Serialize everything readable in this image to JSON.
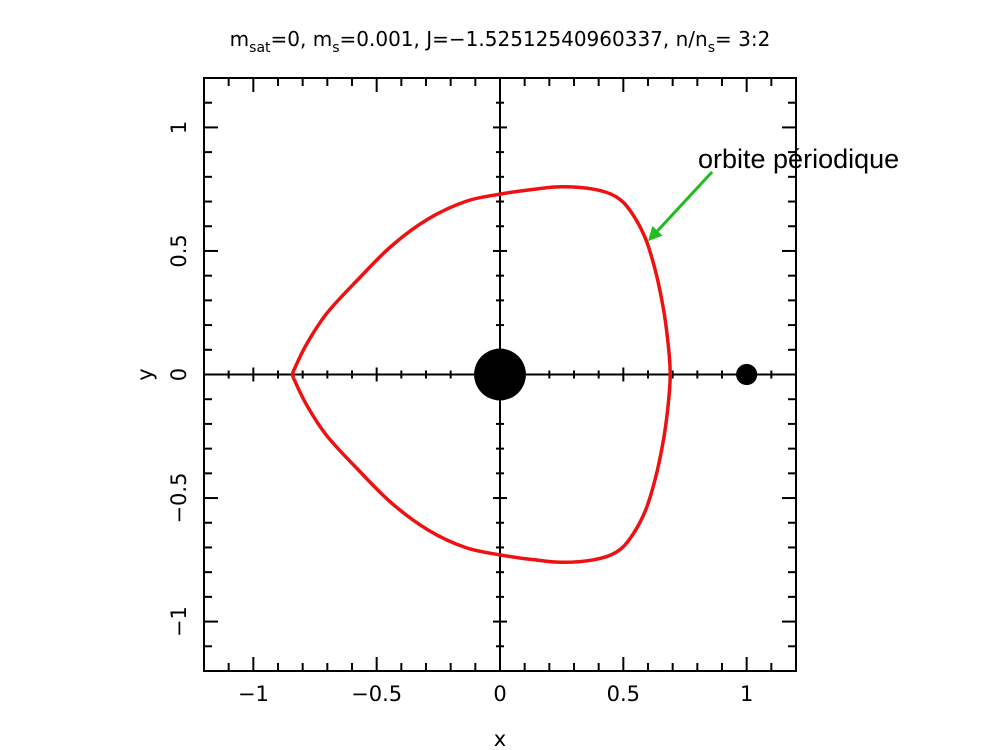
{
  "chart_data": {
    "type": "line",
    "title_parts": {
      "m": "m",
      "sat_sub": "sat",
      "eq0": "=0, ",
      "m2": "m",
      "s_sub": "s",
      "eq_ms": "=0.001, ",
      "J_text": "J=−1.52512540960337, ",
      "n": "n/n",
      "s_sub2": "s",
      "ratio": "= 3:2"
    },
    "xlabel": "x",
    "ylabel": "y",
    "xlim": [
      -1.2,
      1.2
    ],
    "ylim": [
      -1.2,
      1.2
    ],
    "x_ticks": [
      {
        "value": -1,
        "label": "−1"
      },
      {
        "value": -0.5,
        "label": "−0.5"
      },
      {
        "value": 0,
        "label": "0"
      },
      {
        "value": 0.5,
        "label": "0.5"
      },
      {
        "value": 1,
        "label": "1"
      }
    ],
    "y_ticks": [
      {
        "value": -1,
        "label": "−1"
      },
      {
        "value": -0.5,
        "label": "−0.5"
      },
      {
        "value": 0,
        "label": "0"
      },
      {
        "value": 0.5,
        "label": "0.5"
      },
      {
        "value": 1,
        "label": "1"
      }
    ],
    "series": [
      {
        "color": "#ee1111",
        "closed": true,
        "points": [
          [
            0.69,
            0.0
          ],
          [
            0.68,
            0.14
          ],
          [
            0.66,
            0.28
          ],
          [
            0.63,
            0.42
          ],
          [
            0.59,
            0.55
          ],
          [
            0.53,
            0.66
          ],
          [
            0.47,
            0.72
          ],
          [
            0.38,
            0.75
          ],
          [
            0.25,
            0.76
          ],
          [
            0.14,
            0.75
          ],
          [
            0.0,
            0.73
          ],
          [
            -0.14,
            0.7
          ],
          [
            -0.29,
            0.63
          ],
          [
            -0.44,
            0.52
          ],
          [
            -0.58,
            0.38
          ],
          [
            -0.7,
            0.25
          ],
          [
            -0.78,
            0.13
          ],
          [
            -0.83,
            0.03
          ],
          [
            -0.84,
            0.0
          ],
          [
            -0.83,
            -0.03
          ],
          [
            -0.78,
            -0.13
          ],
          [
            -0.7,
            -0.25
          ],
          [
            -0.58,
            -0.38
          ],
          [
            -0.44,
            -0.52
          ],
          [
            -0.29,
            -0.63
          ],
          [
            -0.14,
            -0.7
          ],
          [
            0.0,
            -0.73
          ],
          [
            0.14,
            -0.75
          ],
          [
            0.25,
            -0.76
          ],
          [
            0.38,
            -0.75
          ],
          [
            0.47,
            -0.72
          ],
          [
            0.53,
            -0.66
          ],
          [
            0.59,
            -0.55
          ],
          [
            0.63,
            -0.42
          ],
          [
            0.66,
            -0.28
          ],
          [
            0.68,
            -0.14
          ]
        ]
      }
    ],
    "bodies": [
      {
        "x": 0,
        "y": 0,
        "radius": 0.105,
        "color": "#000000"
      },
      {
        "x": 1,
        "y": 0,
        "radius": 0.043,
        "color": "#000000"
      }
    ],
    "annotation": {
      "text": "orbite périodique",
      "arrow_color": "#22bb22",
      "arrow_from": [
        0.86,
        0.82
      ],
      "arrow_to": [
        0.6,
        0.54
      ]
    },
    "grid": false,
    "axes_through_origin": true
  }
}
